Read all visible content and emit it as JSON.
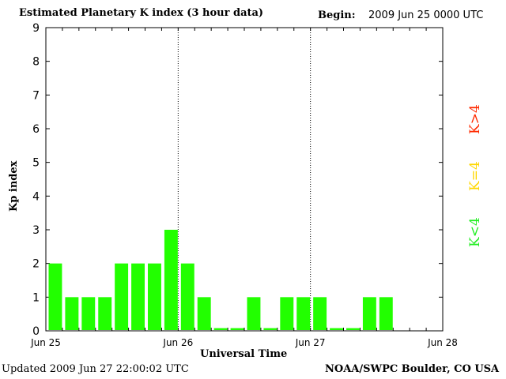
{
  "header": {
    "title": "Estimated Planetary K index (3 hour data)",
    "begin_label": "Begin:",
    "begin_value": "2009 Jun 25 0000 UTC"
  },
  "footer": {
    "updated": "Updated 2009 Jun 27 22:00:02 UTC",
    "credit": "NOAA/SWPC Boulder, CO USA"
  },
  "legend": {
    "gt": "K>4",
    "eq": "K=4",
    "lt": "K<4",
    "colors": {
      "gt": "#ff2a00",
      "eq": "#ffd700",
      "lt": "#22ee22"
    }
  },
  "chart_data": {
    "type": "bar",
    "xlabel": "Universal Time",
    "ylabel": "Kp index",
    "ylim": [
      0,
      9
    ],
    "yticks": [
      "0",
      "1",
      "2",
      "3",
      "4",
      "5",
      "6",
      "7",
      "8",
      "9"
    ],
    "xticks": [
      "Jun 25",
      "Jun 26",
      "Jun 27",
      "Jun 28"
    ],
    "bar_color": "#22ff00",
    "interval_hours": 3,
    "values": [
      2,
      1,
      1,
      1,
      2,
      2,
      2,
      3,
      2,
      1,
      0,
      0,
      1,
      0,
      1,
      1,
      1,
      0,
      0,
      1,
      1
    ],
    "day_separators": [
      "Jun 26",
      "Jun 27"
    ]
  }
}
